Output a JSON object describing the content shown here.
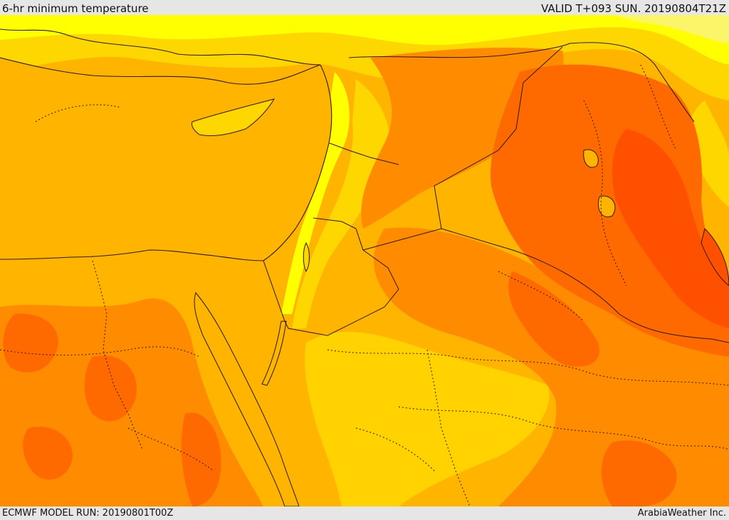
{
  "header": {
    "title": "6-hr minimum temperature",
    "valid": "VALID T+093 SUN. 20190804T21Z"
  },
  "footer": {
    "model_run": "ECMWF MODEL RUN: 20190801T00Z",
    "credit": "ArabiaWeather Inc."
  },
  "map": {
    "palette": {
      "pale_yellow": "#fbf56a",
      "yellow": "#ffff00",
      "gold": "#ffd700",
      "amber": "#ffb400",
      "orange": "#ff8c00",
      "dark_orange": "#ff6a00",
      "red_orange": "#ff5000",
      "coast": "#2a1a00"
    }
  }
}
